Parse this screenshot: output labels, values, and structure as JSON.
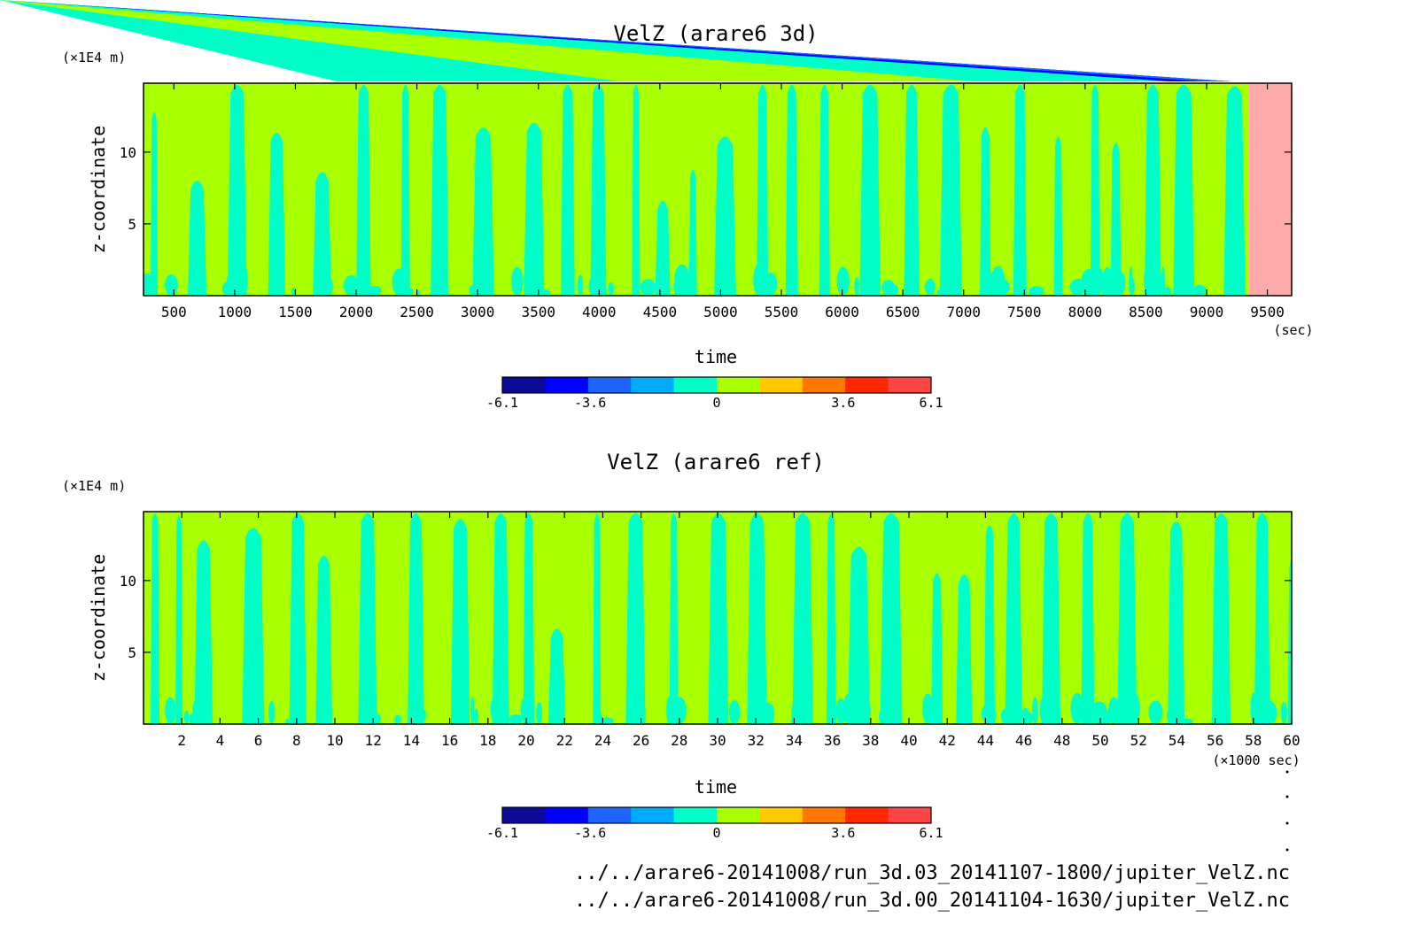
{
  "chart_data": [
    {
      "type": "heatmap",
      "title": "VelZ (arare6 3d)",
      "xlabel": "time",
      "ylabel": "z-coordinate",
      "x_unit": "(sec)",
      "y_unit": "(×1E4 m)",
      "xlim": [
        250,
        9700
      ],
      "ylim": [
        0,
        14.8
      ],
      "x_ticks": [
        500,
        1000,
        1500,
        2000,
        2500,
        3000,
        3500,
        4000,
        4500,
        5000,
        5500,
        6000,
        6500,
        7000,
        7500,
        8000,
        8500,
        9000,
        9500
      ],
      "x_tick_labels": [
        "500",
        "1000",
        "1500",
        "2000",
        "2500",
        "3000",
        "3500",
        "4000",
        "4500",
        "5000",
        "5500",
        "6000",
        "6500",
        "7000",
        "7500",
        "8000",
        "8500",
        "9000",
        "9500"
      ],
      "y_ticks": [
        5,
        10
      ],
      "y_tick_labels": [
        "5",
        "10"
      ],
      "data_end_x": 9350,
      "colorbar": {
        "min": -6.1,
        "max": 6.1,
        "tick_values": [
          -6.1,
          -3.6,
          0,
          3.6,
          6.1
        ],
        "tick_labels": [
          "-6.1",
          "-3.6",
          "0",
          "3.6",
          "6.1"
        ],
        "colors": [
          "#0a0a96",
          "#0000ff",
          "#1e64ff",
          "#00aaff",
          "#00ffc8",
          "#aaff00",
          "#ffc800",
          "#ff7800",
          "#ff2800",
          "#ff4646"
        ]
      },
      "background_color": "#aaff00",
      "pattern_color": "#00ffc8",
      "missing_color": "#ffaaaa"
    },
    {
      "type": "heatmap",
      "title": "VelZ (arare6 ref)",
      "xlabel": "time",
      "ylabel": "z-coordinate",
      "x_unit": "(×1000 sec)",
      "y_unit": "(×1E4 m)",
      "xlim": [
        0,
        60
      ],
      "ylim": [
        0,
        14.8
      ],
      "x_ticks": [
        2,
        4,
        6,
        8,
        10,
        12,
        14,
        16,
        18,
        20,
        22,
        24,
        26,
        28,
        30,
        32,
        34,
        36,
        38,
        40,
        42,
        44,
        46,
        48,
        50,
        52,
        54,
        56,
        58,
        60
      ],
      "x_tick_labels": [
        "2",
        "4",
        "6",
        "8",
        "10",
        "12",
        "14",
        "16",
        "18",
        "20",
        "22",
        "24",
        "26",
        "28",
        "30",
        "32",
        "34",
        "36",
        "38",
        "40",
        "42",
        "44",
        "46",
        "48",
        "50",
        "52",
        "54",
        "56",
        "58",
        "60"
      ],
      "y_ticks": [
        5,
        10
      ],
      "y_tick_labels": [
        "5",
        "10"
      ],
      "colorbar": {
        "min": -6.1,
        "max": 6.1,
        "tick_values": [
          -6.1,
          -3.6,
          0,
          3.6,
          6.1
        ],
        "tick_labels": [
          "-6.1",
          "-3.6",
          "0",
          "3.6",
          "6.1"
        ],
        "colors": [
          "#0a0a96",
          "#0000ff",
          "#1e64ff",
          "#00aaff",
          "#00ffc8",
          "#aaff00",
          "#ffc800",
          "#ff7800",
          "#ff2800",
          "#ff4646"
        ]
      },
      "background_color": "#aaff00",
      "pattern_color": "#00ffc8"
    }
  ],
  "files": [
    "../../arare6-20141008/run_3d.03_20141107-1800/jupiter_VelZ.nc",
    "../../arare6-20141008/run_3d.00_20141104-1630/jupiter_VelZ.nc"
  ]
}
